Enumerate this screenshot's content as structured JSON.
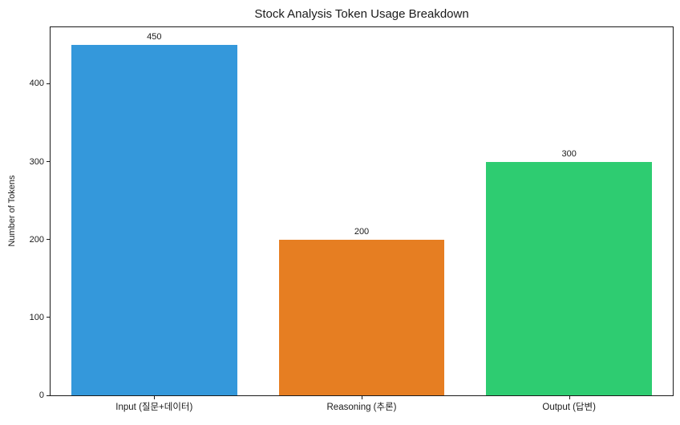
{
  "figure": {
    "background": "#ffffff",
    "axis_color": "#1a1a1a",
    "text_color": "#1a1a1a"
  },
  "chart_data": {
    "type": "bar",
    "title": "Stock Analysis Token Usage Breakdown",
    "xlabel": "",
    "ylabel": "Number of Tokens",
    "categories": [
      "Input (질문+데이터)",
      "Reasoning (추론)",
      "Output (답변)"
    ],
    "values": [
      450,
      200,
      300
    ],
    "value_labels": [
      "450",
      "200",
      "300"
    ],
    "bar_colors": [
      "#3498db",
      "#e67e22",
      "#2ecc71"
    ],
    "ylim": [
      0,
      472.5
    ],
    "yticks": [
      0,
      100,
      200,
      300,
      400
    ],
    "bar_width_fraction": 0.8,
    "grid": false,
    "legend": null
  }
}
